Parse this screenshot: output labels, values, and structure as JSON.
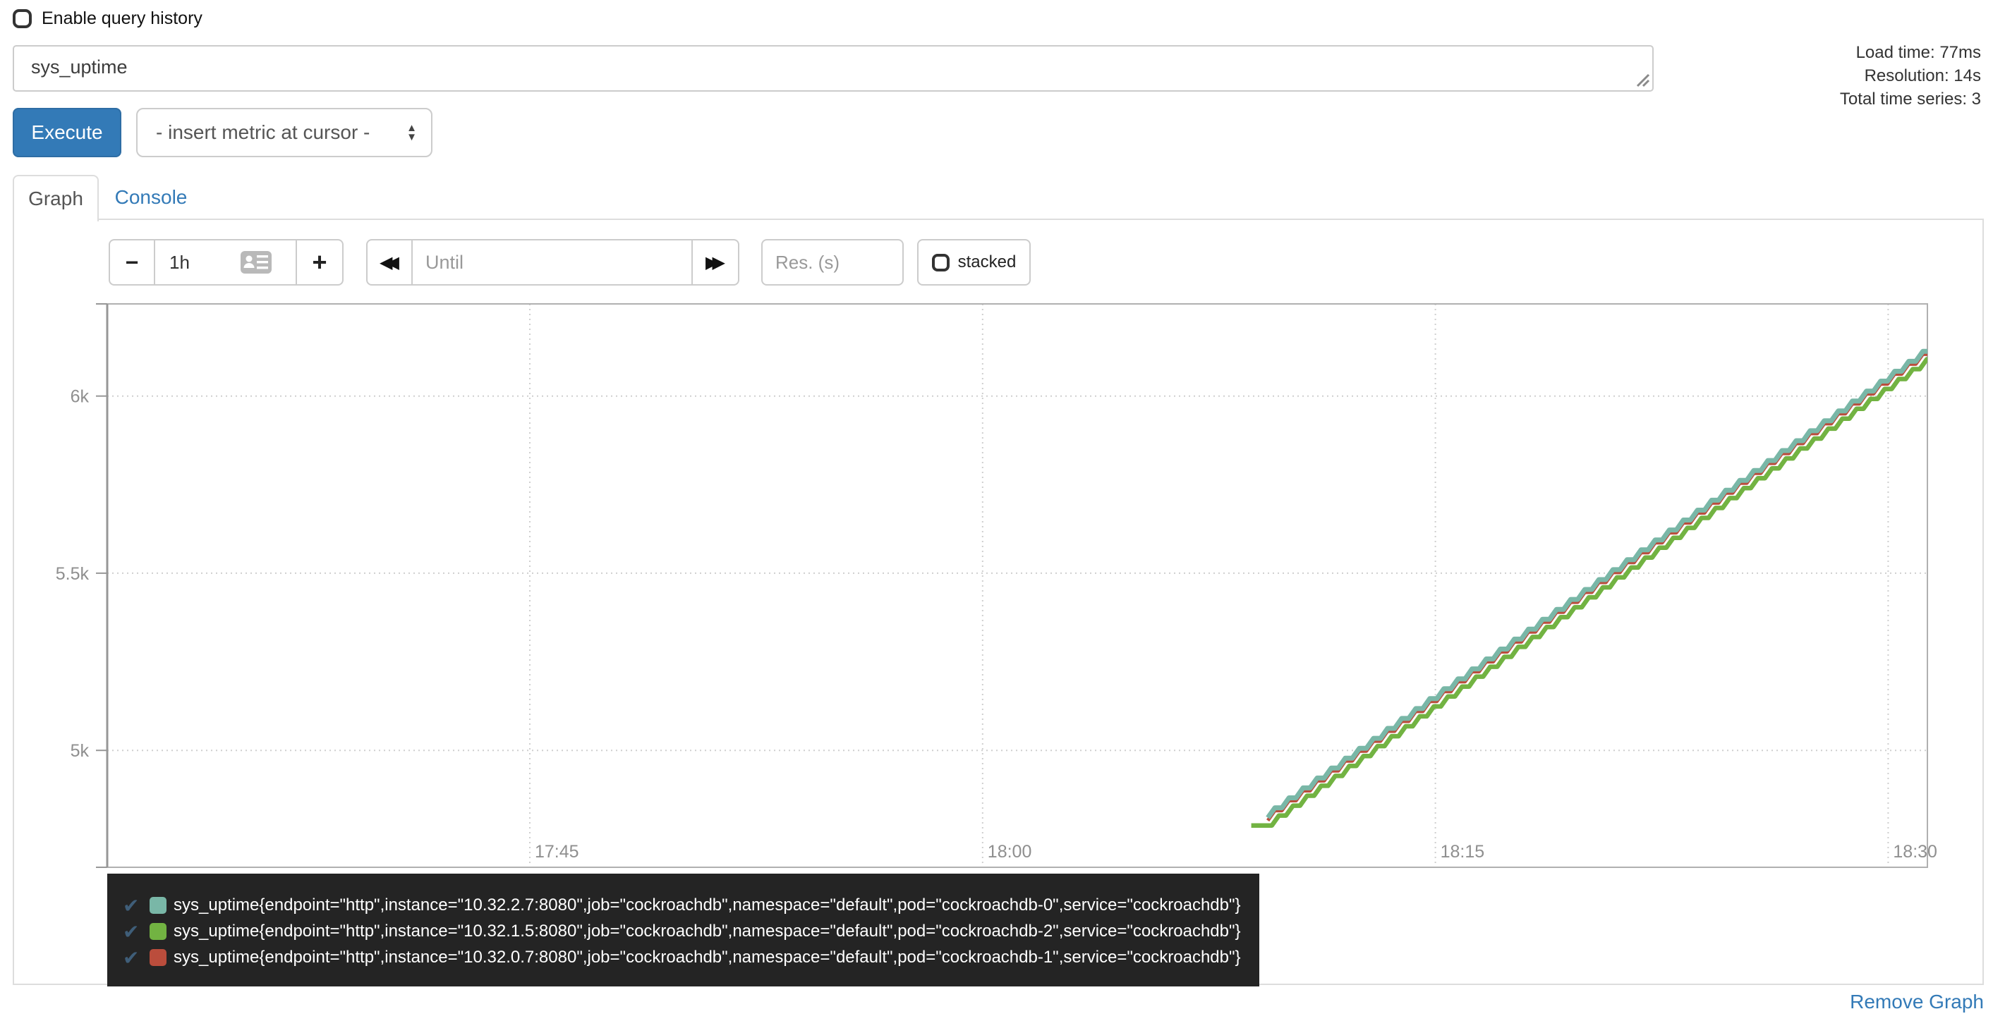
{
  "header": {
    "enable_query_history_label": "Enable query history"
  },
  "stats": {
    "load_time": "Load time: 77ms",
    "resolution": "Resolution: 14s",
    "total_series": "Total time series: 3"
  },
  "query": {
    "value": "sys_uptime"
  },
  "toolbar": {
    "execute_label": "Execute",
    "insert_metric_placeholder": "- insert metric at cursor -"
  },
  "tabs": {
    "graph_label": "Graph",
    "console_label": "Console"
  },
  "graph_controls": {
    "minus_label": "−",
    "plus_label": "+",
    "range_value": "1h",
    "until_placeholder": "Until",
    "res_placeholder": "Res. (s)",
    "stacked_label": "stacked"
  },
  "colors": {
    "accent_blue": "#337ab7",
    "series_teal": "#79b7a7",
    "series_green": "#72b342",
    "series_red": "#bb4d3c",
    "legend_bg": "#242424"
  },
  "legend": {
    "items": [
      {
        "check": "✔",
        "color": "#79b7a7",
        "label": "sys_uptime{endpoint=\"http\",instance=\"10.32.2.7:8080\",job=\"cockroachdb\",namespace=\"default\",pod=\"cockroachdb-0\",service=\"cockroachdb\"}"
      },
      {
        "check": "✔",
        "color": "#72b342",
        "label": "sys_uptime{endpoint=\"http\",instance=\"10.32.1.5:8080\",job=\"cockroachdb\",namespace=\"default\",pod=\"cockroachdb-2\",service=\"cockroachdb\"}"
      },
      {
        "check": "✔",
        "color": "#bb4d3c",
        "label": "sys_uptime{endpoint=\"http\",instance=\"10.32.0.7:8080\",job=\"cockroachdb\",namespace=\"default\",pod=\"cockroachdb-1\",service=\"cockroachdb\"}"
      }
    ]
  },
  "footer": {
    "remove_graph_label": "Remove Graph"
  },
  "chart_data": {
    "type": "line",
    "title": "",
    "xlabel": "",
    "ylabel": "",
    "x_axis": {
      "domain_minutes": [
        0,
        60.3
      ],
      "domain_time_range": [
        "17:31",
        "18:31"
      ],
      "tick_minutes": [
        14,
        29,
        44,
        59
      ],
      "tick_labels": [
        "17:45",
        "18:00",
        "18:15",
        "18:30"
      ],
      "grid": true
    },
    "y_axis": {
      "range": [
        4670,
        6260
      ],
      "tick_values": [
        5000,
        5500,
        6000
      ],
      "tick_labels": [
        "5k",
        "5.5k",
        "6k"
      ],
      "grid": true
    },
    "description": "Three sys_uptime series (seconds) rising ~1 unit/second from ~4800 at 18:09 to ~6100 at 18:31, drawn as 14s-resolution staircases that overlap closely.",
    "series": [
      {
        "name": "sys_uptime pod cockroachdb-1 (10.32.0.7:8080)",
        "color": "#bb4d3c",
        "pattern": "rise-then-flat",
        "start_min": 38.45,
        "start_value": 4802,
        "end_min": 60.35,
        "step_seconds": 14,
        "rise_per_step": 28,
        "width": 5
      },
      {
        "name": "sys_uptime pod cockroachdb-0 (10.32.2.7:8080)",
        "color": "#79b7a7",
        "pattern": "rise-then-flat",
        "start_min": 38.45,
        "start_value": 4810,
        "end_min": 60.35,
        "step_seconds": 14,
        "rise_per_step": 28,
        "width": 7
      },
      {
        "name": "sys_uptime pod cockroachdb-2 (10.32.1.5:8080)",
        "color": "#72b342",
        "pattern": "flat-then-rise",
        "start_min": 37.9,
        "lead_flat_min": 0.45,
        "start_value": 4788,
        "end_min": 60.35,
        "step_seconds": 14,
        "rise_per_step": 28,
        "width": 6.5
      }
    ]
  }
}
